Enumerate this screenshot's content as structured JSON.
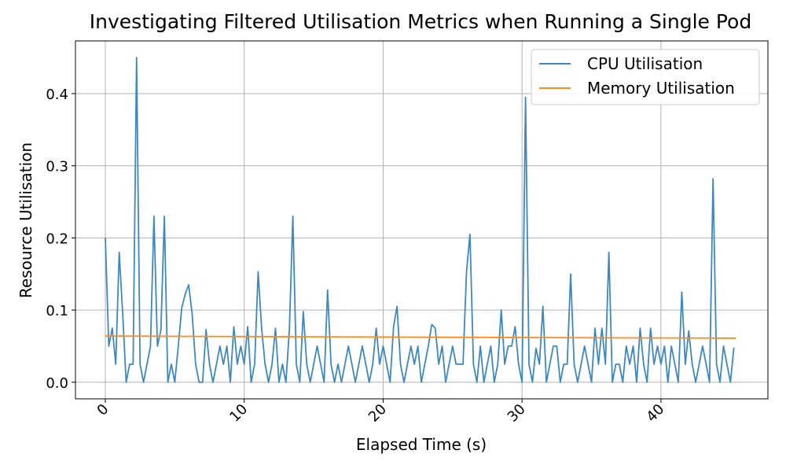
{
  "chart_data": {
    "type": "line",
    "title": "Investigating Filtered Utilisation Metrics when Running a Single Pod",
    "xlabel": "Elapsed Time (s)",
    "ylabel": "Resource Utilisation",
    "xlim": [
      -2.15,
      47.7
    ],
    "ylim": [
      -0.023,
      0.473
    ],
    "xticks": [
      0,
      10,
      20,
      30,
      40
    ],
    "yticks": [
      {
        "value": 0,
        "label": "0.0"
      },
      0.1,
      0.2,
      0.3,
      0.4
    ],
    "grid": true,
    "legend": "upper right",
    "x": [
      0,
      0.25,
      0.5,
      0.75,
      1,
      1.25,
      1.5,
      1.75,
      2,
      2.25,
      2.5,
      2.75,
      3,
      3.25,
      3.5,
      3.75,
      4,
      4.25,
      4.5,
      4.75,
      5,
      5.25,
      5.5,
      5.75,
      6,
      6.25,
      6.5,
      6.75,
      7,
      7.25,
      7.5,
      7.75,
      8,
      8.25,
      8.5,
      8.75,
      9,
      9.25,
      9.5,
      9.75,
      10,
      10.25,
      10.5,
      10.75,
      11,
      11.25,
      11.5,
      11.75,
      12,
      12.25,
      12.5,
      12.75,
      13,
      13.25,
      13.5,
      13.75,
      14,
      14.25,
      14.5,
      14.75,
      15,
      15.25,
      15.5,
      15.75,
      16,
      16.25,
      16.5,
      16.75,
      17,
      17.25,
      17.5,
      17.75,
      18,
      18.25,
      18.5,
      18.75,
      19,
      19.25,
      19.5,
      19.75,
      20,
      20.25,
      20.5,
      20.75,
      21,
      21.25,
      21.5,
      21.75,
      22,
      22.25,
      22.5,
      22.75,
      23,
      23.25,
      23.5,
      23.75,
      24,
      24.25,
      24.5,
      24.75,
      25,
      25.25,
      25.5,
      25.75,
      26,
      26.25,
      26.5,
      26.75,
      27,
      27.25,
      27.5,
      27.75,
      28,
      28.25,
      28.5,
      28.75,
      29,
      29.25,
      29.5,
      29.75,
      30,
      30.25,
      30.5,
      30.75,
      31,
      31.25,
      31.5,
      31.75,
      32,
      32.25,
      32.5,
      32.75,
      33,
      33.25,
      33.5,
      33.75,
      34,
      34.25,
      34.5,
      34.75,
      35,
      35.25,
      35.5,
      35.75,
      36,
      36.25,
      36.5,
      36.75,
      37,
      37.25,
      37.5,
      37.75,
      38,
      38.25,
      38.5,
      38.75,
      39,
      39.25,
      39.5,
      39.75,
      40,
      40.25,
      40.5,
      40.75,
      41,
      41.25,
      41.5,
      41.75,
      42,
      42.25,
      42.5,
      42.75,
      43,
      43.25,
      43.5,
      43.75,
      44,
      44.25,
      44.5,
      44.75,
      45,
      45.25
    ],
    "series": [
      {
        "name": "CPU Utilisation",
        "color": "#3d88bf",
        "values": [
          0.2,
          0.05,
          0.075,
          0.025,
          0.18,
          0.095,
          0.0,
          0.025,
          0.025,
          0.45,
          0.025,
          0.0,
          0.025,
          0.05,
          0.23,
          0.05,
          0.072,
          0.23,
          0.0,
          0.025,
          0.0,
          0.05,
          0.103,
          0.122,
          0.135,
          0.095,
          0.025,
          0.0,
          0.0,
          0.073,
          0.025,
          0.0,
          0.025,
          0.05,
          0.025,
          0.05,
          0.0,
          0.077,
          0.025,
          0.05,
          0.025,
          0.077,
          0.0,
          0.025,
          0.153,
          0.075,
          0.025,
          0.0,
          0.025,
          0.075,
          0.0,
          0.025,
          0.0,
          0.073,
          0.23,
          0.025,
          0.0,
          0.098,
          0.025,
          0.0,
          0.025,
          0.05,
          0.025,
          0.0,
          0.128,
          0.025,
          0.0,
          0.025,
          0.0,
          0.025,
          0.05,
          0.025,
          0.0,
          0.025,
          0.05,
          0.025,
          0.0,
          0.025,
          0.075,
          0.025,
          0.05,
          0.025,
          0.0,
          0.077,
          0.105,
          0.025,
          0.0,
          0.025,
          0.05,
          0.025,
          0.05,
          0.0,
          0.025,
          0.05,
          0.08,
          0.075,
          0.025,
          0.05,
          0.0,
          0.025,
          0.05,
          0.025,
          0.025,
          0.025,
          0.153,
          0.205,
          0.025,
          0.0,
          0.05,
          0.0,
          0.025,
          0.05,
          0.0,
          0.025,
          0.1,
          0.025,
          0.05,
          0.05,
          0.077,
          0.025,
          0.0,
          0.395,
          0.025,
          0.0,
          0.047,
          0.025,
          0.105,
          0.0,
          0.025,
          0.05,
          0.05,
          0.0,
          0.025,
          0.025,
          0.15,
          0.025,
          0.0,
          0.025,
          0.05,
          0.025,
          0.0,
          0.075,
          0.025,
          0.075,
          0.025,
          0.18,
          0.0,
          0.025,
          0.025,
          0.0,
          0.05,
          0.025,
          0.05,
          0.0,
          0.075,
          0.025,
          0.0,
          0.075,
          0.025,
          0.05,
          0.025,
          0.05,
          0.0,
          0.05,
          0.025,
          0.0,
          0.125,
          0.025,
          0.071,
          0.025,
          0.0,
          0.025,
          0.05,
          0.025,
          0.0,
          0.282,
          0.025,
          0.0,
          0.05,
          0.025,
          0.0,
          0.048
        ]
      },
      {
        "name": "Memory Utilisation",
        "color": "#ff8c1a",
        "x": [
          0,
          15,
          30,
          45.4
        ],
        "values": [
          0.064,
          0.063,
          0.062,
          0.061
        ]
      }
    ]
  }
}
